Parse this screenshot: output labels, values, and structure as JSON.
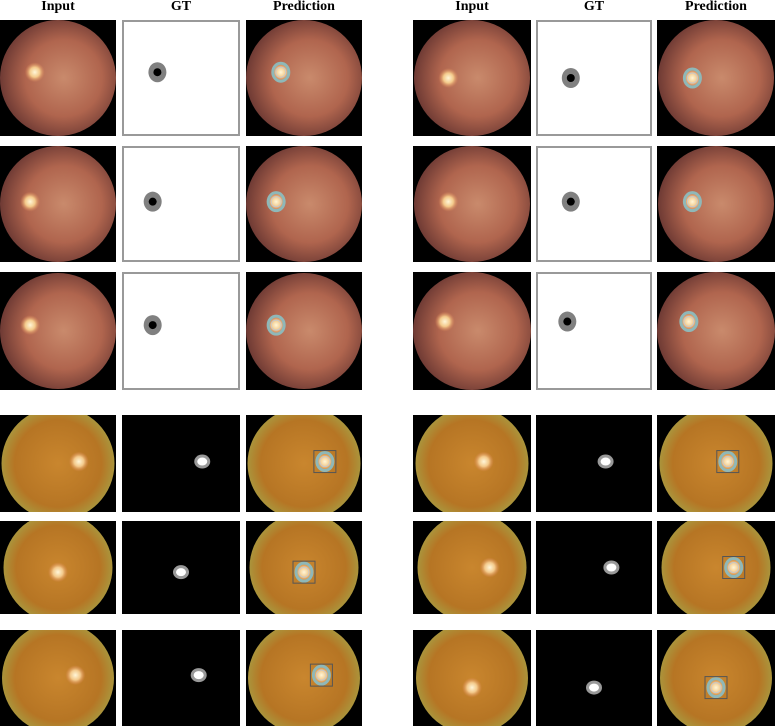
{
  "headers": {
    "left": [
      "Input",
      "GT",
      "Prediction"
    ],
    "right": [
      "Input",
      "GT",
      "Prediction"
    ]
  }
}
